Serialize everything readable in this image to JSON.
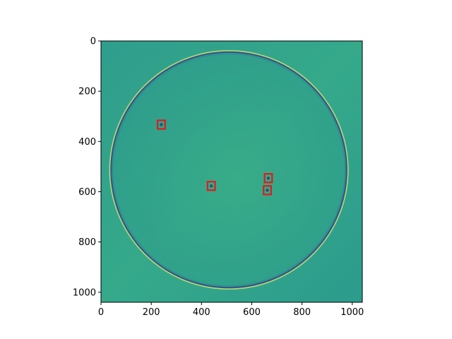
{
  "image": {
    "description": "micrograph",
    "x_range": [
      0,
      1040
    ],
    "y_range": [
      0,
      1040
    ],
    "x_ticks": [
      0,
      200,
      400,
      600,
      800,
      1000
    ],
    "y_ticks": [
      0,
      200,
      400,
      600,
      800,
      1000
    ]
  },
  "circle": {
    "center": [
      509,
      513
    ],
    "radius": 470
  },
  "detections": [
    {
      "x": 240,
      "y": 333,
      "w": 30,
      "h": 34
    },
    {
      "x": 439,
      "y": 577,
      "w": 30,
      "h": 34
    },
    {
      "x": 666,
      "y": 546,
      "w": 30,
      "h": 34
    },
    {
      "x": 662,
      "y": 594,
      "w": 30,
      "h": 34
    }
  ],
  "colors": {
    "background": "#2fa28d",
    "ring_dark": "#3a4a8c",
    "ring_light": "#cfe46a",
    "box": "#e31a1c"
  }
}
